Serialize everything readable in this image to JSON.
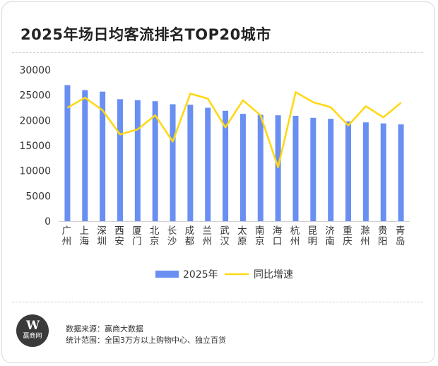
{
  "chart_data": {
    "type": "bar+line",
    "title": "2025年场日均客流排名TOP20城市",
    "categories": [
      "广州",
      "上海",
      "深圳",
      "西安",
      "厦门",
      "北京",
      "长沙",
      "成都",
      "兰州",
      "武汉",
      "太原",
      "南京",
      "海口",
      "杭州",
      "昆明",
      "济南",
      "重庆",
      "滁州",
      "贵阳",
      "青岛"
    ],
    "series": [
      {
        "name": "2025年",
        "type": "bar",
        "color": "#6a8ff2",
        "values": [
          27000,
          26000,
          25700,
          24200,
          24000,
          23800,
          23200,
          23100,
          22500,
          21900,
          21300,
          21100,
          21000,
          20900,
          20500,
          20300,
          19800,
          19600,
          19400,
          19200
        ]
      },
      {
        "name": "同比增速",
        "type": "line",
        "color": "#ffd816",
        "values": [
          22500,
          24500,
          22000,
          17200,
          18200,
          21000,
          15800,
          25300,
          24300,
          18600,
          24000,
          21000,
          10700,
          25600,
          23600,
          22600,
          19000,
          22800,
          20600,
          23500
        ]
      }
    ],
    "y_axis": {
      "min": 0,
      "max": 30000,
      "ticks": [
        0,
        5000,
        10000,
        15000,
        20000,
        25000,
        30000
      ]
    },
    "legend": [
      "2025年",
      "同比增速"
    ],
    "legend_position": "bottom"
  },
  "logo": {
    "mark": "W",
    "text": "赢商网"
  },
  "source": {
    "line1": "数据来源：赢商大数据",
    "line2": "统计范围：全国3万方以上购物中心、独立百货"
  }
}
